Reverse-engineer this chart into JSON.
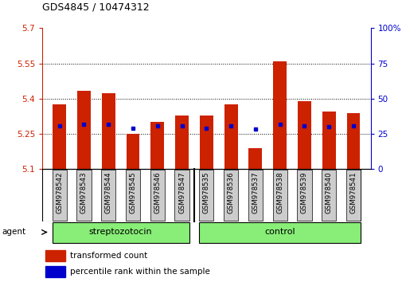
{
  "title": "GDS4845 / 10474312",
  "samples": [
    "GSM978542",
    "GSM978543",
    "GSM978544",
    "GSM978545",
    "GSM978546",
    "GSM978547",
    "GSM978535",
    "GSM978536",
    "GSM978537",
    "GSM978538",
    "GSM978539",
    "GSM978540",
    "GSM978541"
  ],
  "red_values": [
    5.375,
    5.435,
    5.425,
    5.25,
    5.3,
    5.33,
    5.33,
    5.375,
    5.19,
    5.56,
    5.39,
    5.345,
    5.34
  ],
  "blue_values": [
    5.285,
    5.29,
    5.29,
    5.275,
    5.285,
    5.285,
    5.275,
    5.285,
    5.272,
    5.29,
    5.285,
    5.28,
    5.285
  ],
  "y_min": 5.1,
  "y_max": 5.7,
  "y_ticks": [
    5.1,
    5.25,
    5.4,
    5.55,
    5.7
  ],
  "y_tick_labels": [
    "5.1",
    "5.25",
    "5.4",
    "5.55",
    "5.7"
  ],
  "right_y_ticks_pct": [
    0,
    25,
    50,
    75,
    100
  ],
  "right_y_labels": [
    "0",
    "25",
    "50",
    "75",
    "100%"
  ],
  "bar_color": "#cc2200",
  "blue_color": "#0000cc",
  "bg_color": "#ffffff",
  "streptozotocin_indices": [
    0,
    1,
    2,
    3,
    4,
    5
  ],
  "control_indices": [
    6,
    7,
    8,
    9,
    10,
    11,
    12
  ],
  "streptozotocin_label": "streptozotocin",
  "control_label": "control",
  "group_bg_color": "#88ee77",
  "label_bg_color": "#cccccc",
  "left_axis_color": "#cc2200",
  "right_axis_color": "#0000cc",
  "bar_width": 0.55,
  "blue_marker_size": 3.5,
  "legend_red_label": "transformed count",
  "legend_blue_label": "percentile rank within the sample",
  "agent_label": "agent"
}
